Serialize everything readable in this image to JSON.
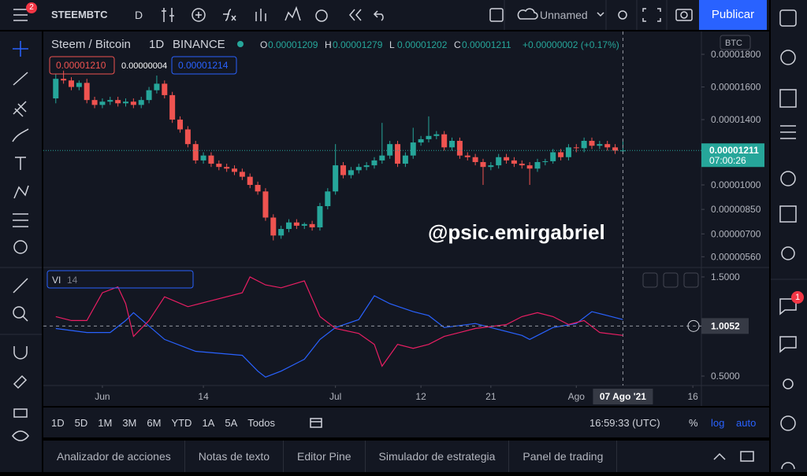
{
  "toolbar": {
    "menu_badge": "2",
    "symbol": "STEEMBTC",
    "interval": "D",
    "layout_name": "Unnamed",
    "publish": "Publicar"
  },
  "legend": {
    "title": "Steem / Bitcoin",
    "interval": "1D",
    "exchange": "BINANCE",
    "labels": [
      "O",
      "H",
      "L",
      "C"
    ],
    "values": [
      "0.00001209",
      "0.00001279",
      "0.00001202",
      "0.00001211"
    ],
    "change": "+0.00000002 (+0.17%)",
    "sell_price": "0.00001210",
    "spread": "0.00000004",
    "buy_price": "0.00001214",
    "currency": "BTC"
  },
  "watermark": "@psic.emirgabriel",
  "indicator": {
    "name": "VI",
    "length": "14"
  },
  "chart_data": [
    {
      "type": "candlestick",
      "up_color": "#26a69a",
      "down_color": "#ef5350",
      "xlim": [
        -1.6,
        83.1
      ],
      "xticks": [
        {
          "value": 6,
          "label": "Jun"
        },
        {
          "value": 19,
          "label": "14"
        },
        {
          "value": 36,
          "label": "Jul"
        },
        {
          "value": 47,
          "label": "12"
        },
        {
          "value": 56,
          "label": "21"
        },
        {
          "value": 67,
          "label": "Ago"
        },
        {
          "value": 82,
          "label": "16"
        }
      ],
      "crosshair_x": {
        "value": 73,
        "label": "07 Ago '21"
      },
      "ylim": [
        4.94e-06,
        1.94e-05
      ],
      "yticks": [
        {
          "value": 1.8e-05,
          "label": "0.00001800"
        },
        {
          "value": 1.6e-05,
          "label": "0.00001600"
        },
        {
          "value": 1.4e-05,
          "label": "0.00001400"
        },
        {
          "value": 1e-05,
          "label": "0.00001000"
        },
        {
          "value": 8.5e-06,
          "label": "0.00000850"
        },
        {
          "value": 7e-06,
          "label": "0.00000700"
        },
        {
          "value": 5.6e-06,
          "label": "0.00000560"
        }
      ],
      "last_price": {
        "value": 1.211e-05,
        "label": "0.00001211"
      },
      "countdown": "07:00:26",
      "open": [
        1.53e-05,
        1.65e-05,
        1.64e-05,
        1.6e-05,
        1.625e-05,
        1.52e-05,
        1.49e-05,
        1.51e-05,
        1.52e-05,
        1.5e-05,
        1.51e-05,
        1.49e-05,
        1.52e-05,
        1.58e-05,
        1.62e-05,
        1.55e-05,
        1.4e-05,
        1.34e-05,
        1.25e-05,
        1.15e-05,
        1.18e-05,
        1.13e-05,
        1.11e-05,
        1.1e-05,
        1.08e-05,
        1.05e-05,
        1e-05,
        9.6e-06,
        8e-06,
        6.9e-06,
        7.3e-06,
        7.7e-06,
        7.5e-06,
        7.6e-06,
        7.4e-06,
        8.7e-06,
        9.6e-06,
        1.12e-05,
        1.06e-05,
        1.09e-05,
        1.11e-05,
        1.12e-05,
        1.15e-05,
        1.18e-05,
        1.25e-05,
        1.13e-05,
        1.18e-05,
        1.26e-05,
        1.28e-05,
        1.3e-05,
        1.31e-05,
        1.23e-05,
        1.27e-05,
        1.18e-05,
        1.17e-05,
        1.14e-05,
        1.11e-05,
        1.12e-05,
        1.17e-05,
        1.15e-05,
        1.13e-05,
        1.12e-05,
        1.1e-05,
        1.14e-05,
        1.145e-05,
        1.2e-05,
        1.17e-05,
        1.23e-05,
        1.225e-05,
        1.27e-05,
        1.24e-05,
        1.25e-05,
        1.23e-05,
        1.209e-05
      ],
      "high": [
        1.68e-05,
        1.7e-05,
        1.66e-05,
        1.64e-05,
        1.65e-05,
        1.54e-05,
        1.53e-05,
        1.54e-05,
        1.54e-05,
        1.53e-05,
        1.53e-05,
        1.54e-05,
        1.6e-05,
        1.67e-05,
        1.64e-05,
        1.57e-05,
        1.42e-05,
        1.36e-05,
        1.27e-05,
        1.2e-05,
        1.2e-05,
        1.15e-05,
        1.13e-05,
        1.12e-05,
        1.1e-05,
        1.07e-05,
        1.02e-05,
        9.8e-06,
        8.2e-06,
        7.5e-06,
        7.9e-06,
        7.9e-06,
        7.7e-06,
        7.8e-06,
        8.9e-06,
        9.8e-06,
        1.25e-05,
        1.14e-05,
        1.11e-05,
        1.13e-05,
        1.14e-05,
        1.17e-05,
        1.38e-05,
        1.27e-05,
        1.27e-05,
        1.2e-05,
        1.35e-05,
        1.3e-05,
        1.42e-05,
        1.33e-05,
        1.33e-05,
        1.29e-05,
        1.29e-05,
        1.2e-05,
        1.19e-05,
        1.16e-05,
        1.14e-05,
        1.19e-05,
        1.19e-05,
        1.17e-05,
        1.15e-05,
        1.14e-05,
        1.16e-05,
        1.16e-05,
        1.22e-05,
        1.22e-05,
        1.25e-05,
        1.25e-05,
        1.29e-05,
        1.29e-05,
        1.27e-05,
        1.27e-05,
        1.25e-05,
        1.279e-05
      ],
      "low": [
        1.5e-05,
        1.62e-05,
        1.58e-05,
        1.58e-05,
        1.5e-05,
        1.47e-05,
        1.47e-05,
        1.49e-05,
        1.48e-05,
        1.48e-05,
        1.47e-05,
        1.47e-05,
        1.5e-05,
        1.56e-05,
        1.53e-05,
        1.38e-05,
        1.32e-05,
        1.23e-05,
        1.13e-05,
        1.13e-05,
        1.11e-05,
        1.09e-05,
        1.08e-05,
        1.06e-05,
        1.03e-05,
        9.8e-06,
        9.4e-06,
        7.8e-06,
        6.6e-06,
        6.7e-06,
        7.1e-06,
        7.3e-06,
        7.3e-06,
        7.2e-06,
        7.2e-06,
        8.5e-06,
        9.4e-06,
        1.04e-05,
        1.04e-05,
        1.07e-05,
        1.09e-05,
        1.1e-05,
        1.13e-05,
        1.16e-05,
        1.11e-05,
        1.11e-05,
        1.16e-05,
        1.24e-05,
        1.26e-05,
        1.28e-05,
        1.21e-05,
        1.21e-05,
        1.16e-05,
        1.15e-05,
        1.12e-05,
        1e-05,
        1.09e-05,
        1.1e-05,
        1.13e-05,
        1.11e-05,
        1.1e-05,
        1e-05,
        1.08e-05,
        1.12e-05,
        1.13e-05,
        1.15e-05,
        1.15e-05,
        1.2e-05,
        1.2e-05,
        1.22e-05,
        1.22e-05,
        1.21e-05,
        1.19e-05,
        1.202e-05
      ],
      "close": [
        1.65e-05,
        1.64e-05,
        1.6e-05,
        1.625e-05,
        1.52e-05,
        1.49e-05,
        1.51e-05,
        1.52e-05,
        1.5e-05,
        1.51e-05,
        1.49e-05,
        1.52e-05,
        1.58e-05,
        1.62e-05,
        1.55e-05,
        1.4e-05,
        1.34e-05,
        1.25e-05,
        1.15e-05,
        1.18e-05,
        1.13e-05,
        1.11e-05,
        1.1e-05,
        1.08e-05,
        1.05e-05,
        1e-05,
        9.6e-06,
        8e-06,
        6.9e-06,
        7.3e-06,
        7.7e-06,
        7.5e-06,
        7.6e-06,
        7.4e-06,
        8.7e-06,
        9.6e-06,
        1.12e-05,
        1.06e-05,
        1.09e-05,
        1.11e-05,
        1.12e-05,
        1.15e-05,
        1.18e-05,
        1.25e-05,
        1.13e-05,
        1.18e-05,
        1.26e-05,
        1.28e-05,
        1.3e-05,
        1.31e-05,
        1.23e-05,
        1.27e-05,
        1.18e-05,
        1.17e-05,
        1.14e-05,
        1.11e-05,
        1.12e-05,
        1.17e-05,
        1.15e-05,
        1.13e-05,
        1.12e-05,
        1.1e-05,
        1.14e-05,
        1.145e-05,
        1.2e-05,
        1.17e-05,
        1.23e-05,
        1.225e-05,
        1.27e-05,
        1.24e-05,
        1.25e-05,
        1.23e-05,
        1.21e-05,
        1.211e-05
      ]
    },
    {
      "type": "line",
      "xlim": [
        -1.6,
        83.1
      ],
      "ylim": [
        0.405,
        1.595
      ],
      "yticks": [
        {
          "value": 1.5,
          "label": "1.5000"
        },
        {
          "value": 0.5,
          "label": "0.5000"
        }
      ],
      "crosshair_value": {
        "value": 1.0052,
        "label": "1.0052"
      },
      "series": [
        {
          "color": "#2962ff",
          "x": [
            0,
            4,
            7,
            9,
            10,
            14,
            18,
            24,
            26,
            27,
            29,
            32,
            34,
            36,
            39,
            41,
            43,
            46,
            48,
            50,
            54,
            56,
            60,
            61,
            64,
            67,
            69,
            71,
            73
          ],
          "values": [
            0.98,
            0.94,
            0.94,
            1.06,
            1.14,
            0.87,
            0.75,
            0.71,
            0.55,
            0.49,
            0.55,
            0.67,
            0.87,
            0.99,
            1.07,
            1.31,
            1.23,
            1.15,
            1.11,
            0.99,
            1.03,
            0.99,
            0.91,
            0.87,
            0.99,
            1.03,
            1.15,
            1.11,
            1.07
          ]
        },
        {
          "color": "#e91e63",
          "x": [
            0,
            2,
            4,
            6,
            8,
            9,
            10,
            12,
            14,
            17,
            20,
            24,
            25,
            27,
            29,
            32,
            34,
            36,
            39,
            41,
            42,
            44,
            46,
            48,
            50,
            52,
            54,
            58,
            60,
            62,
            64,
            66,
            68,
            70,
            73
          ],
          "values": [
            1.1,
            1.06,
            1.06,
            1.34,
            1.4,
            1.23,
            0.9,
            1.06,
            1.3,
            1.2,
            1.26,
            1.34,
            1.5,
            1.42,
            1.39,
            1.46,
            1.1,
            0.98,
            0.93,
            0.82,
            0.6,
            0.82,
            0.78,
            0.82,
            0.9,
            0.94,
            0.98,
            1.02,
            1.1,
            1.14,
            1.1,
            1.02,
            1.06,
            0.94,
            0.91
          ]
        }
      ]
    }
  ],
  "bottom_bar": {
    "ranges": [
      "1D",
      "5D",
      "1M",
      "3M",
      "6M",
      "YTD",
      "1A",
      "5A",
      "Todos"
    ],
    "clock": "16:59:33 (UTC)",
    "percent": "%",
    "log": "log",
    "auto": "auto"
  },
  "tabs": [
    "Analizador de acciones",
    "Notas de texto",
    "Editor Pine",
    "Simulador de estrategia",
    "Panel de trading"
  ],
  "right_badge": "1"
}
